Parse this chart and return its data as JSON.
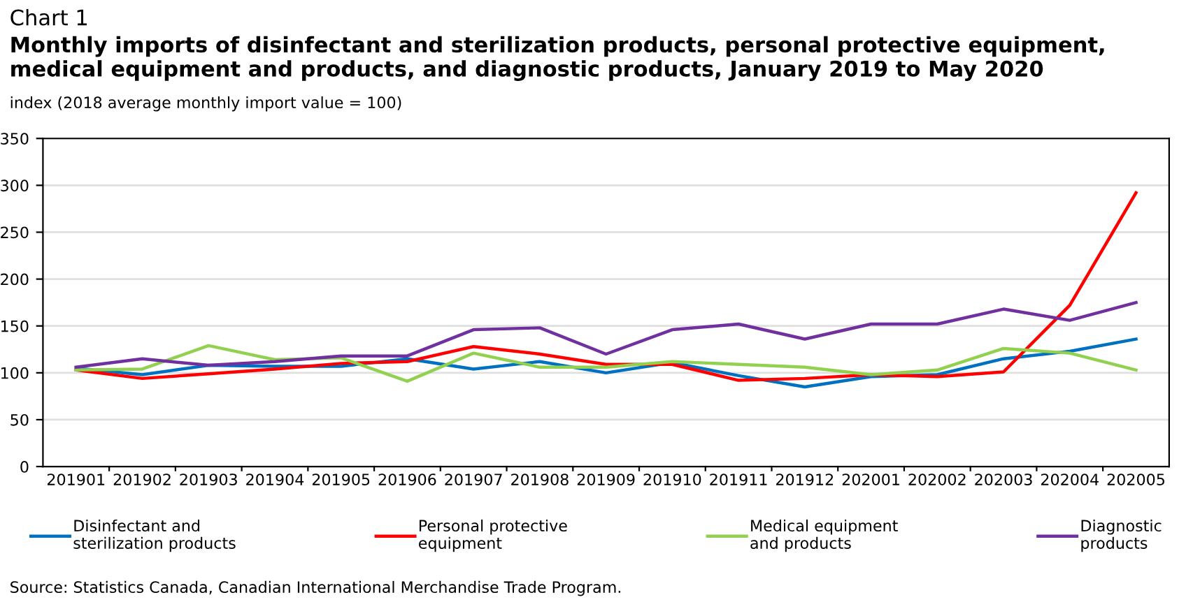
{
  "chart_data": {
    "type": "line",
    "title": "Chart 1",
    "subtitle": "Monthly imports of disinfectant and sterilization products, personal protective equipment, medical equipment and products, and diagnostic products, January 2019 to May 2020",
    "ylabel": "index (2018 average monthly import value = 100)",
    "categories": [
      "201901",
      "201902",
      "201903",
      "201904",
      "201905",
      "201906",
      "201907",
      "201908",
      "201909",
      "201910",
      "201911",
      "201912",
      "202001",
      "202002",
      "202003",
      "202004",
      "202005"
    ],
    "series": [
      {
        "name": "Disinfectant and sterilization products",
        "color": "#0070c0",
        "values": [
          105,
          98,
          108,
          107,
          107,
          115,
          104,
          112,
          100,
          111,
          97,
          85,
          96,
          98,
          115,
          123,
          136
        ]
      },
      {
        "name": "Personal protective equipment",
        "color": "#ff0000",
        "values": [
          103,
          94,
          99,
          104,
          110,
          112,
          128,
          120,
          109,
          109,
          92,
          94,
          98,
          96,
          101,
          172,
          292
        ]
      },
      {
        "name": "Medical equipment and products",
        "color": "#92d050",
        "values": [
          103,
          104,
          129,
          114,
          116,
          91,
          121,
          106,
          106,
          112,
          109,
          106,
          98,
          103,
          126,
          121,
          103
        ]
      },
      {
        "name": "Diagnostic products",
        "color": "#7030a0",
        "values": [
          106,
          115,
          108,
          112,
          118,
          118,
          146,
          148,
          120,
          146,
          152,
          136,
          152,
          152,
          168,
          156,
          175
        ]
      }
    ],
    "ylim": [
      0,
      350
    ],
    "yticks": [
      0,
      50,
      100,
      150,
      200,
      250,
      300,
      350
    ],
    "grid": "y",
    "legend": "bottom",
    "line_style": "solid",
    "marker": "none",
    "annotations": [
      "Source: Statistics Canada, Canadian International Merchandise Trade Program."
    ]
  }
}
